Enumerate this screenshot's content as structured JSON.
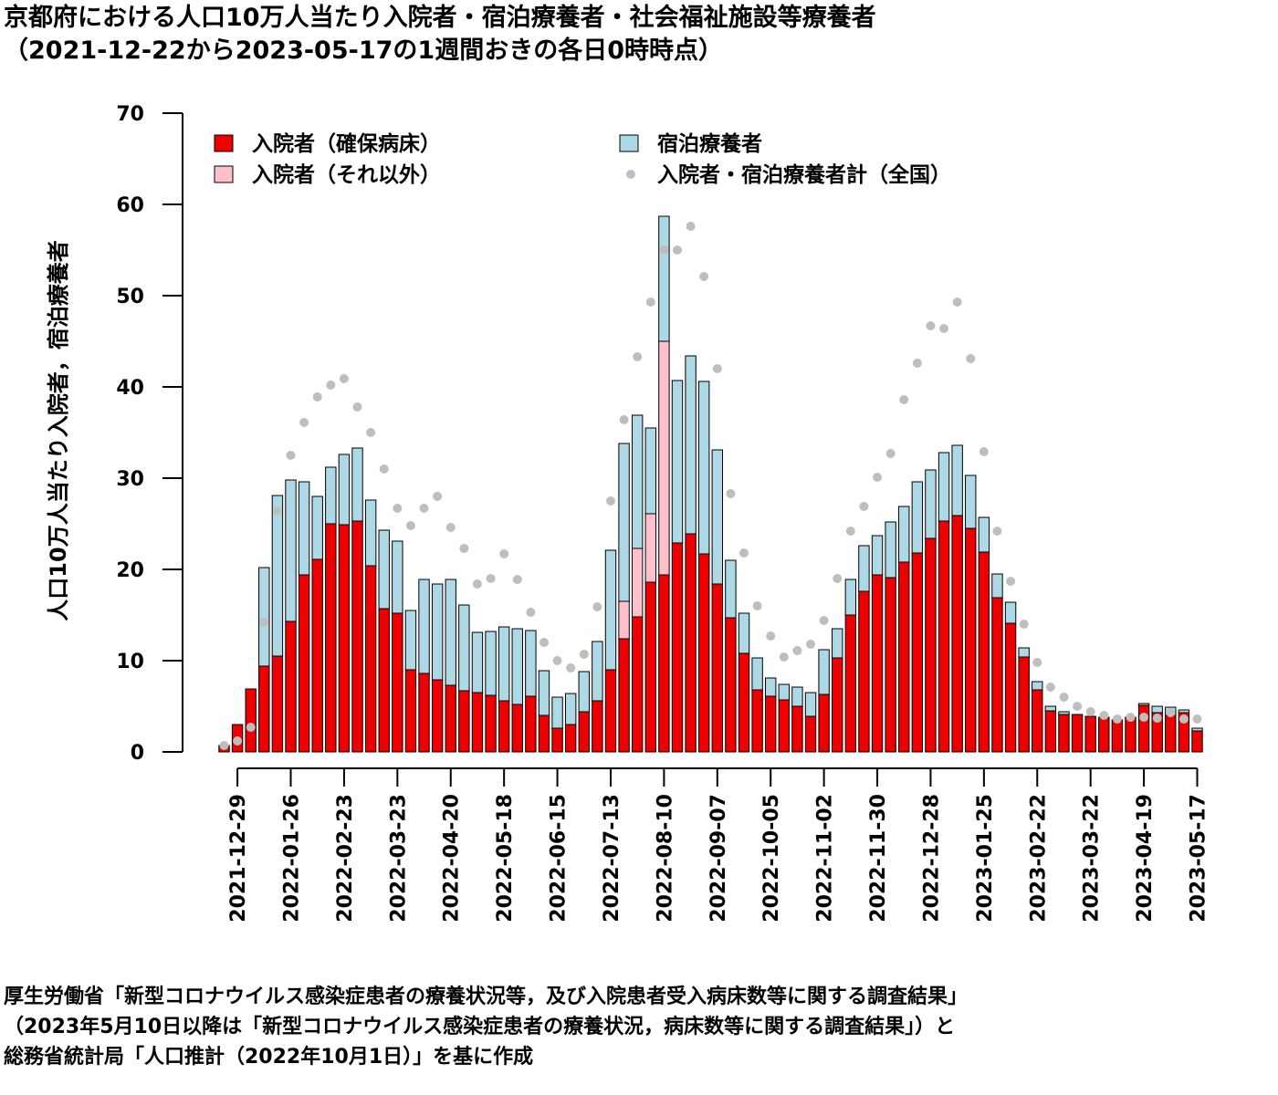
{
  "title_line1": "京都府における人口10万人当たり入院者・宿泊療養者・社会福祉施設等療養者",
  "title_line2": "（2021-12-22から2023-05-17の1週間おきの各日0時時点）",
  "source_line1": "厚生労働省「新型コロナウイルス感染症患者の療養状況等，及び入院患者受入病床数等に関する調査結果」",
  "source_line2": "（2023年5月10日以降は「新型コロナウイルス感染症患者の療養状況，病床数等に関する調査結果」）と",
  "source_line3": "総務省統計局「人口推計（2022年10月1日）」を基に作成",
  "chart_data": {
    "type": "bar",
    "ylabel": "人口10万人当たり入院者，宿泊療養者",
    "ylim": [
      0,
      70
    ],
    "yticks": [
      0,
      10,
      20,
      30,
      40,
      50,
      60,
      70
    ],
    "stacked": true,
    "x_tick_labels": [
      "2021-12-29",
      "2022-01-26",
      "2022-02-23",
      "2022-03-23",
      "2022-04-20",
      "2022-05-18",
      "2022-06-15",
      "2022-07-13",
      "2022-08-10",
      "2022-09-07",
      "2022-10-05",
      "2022-11-02",
      "2022-11-30",
      "2022-12-28",
      "2023-01-25",
      "2023-02-22",
      "2023-03-22",
      "2023-04-19",
      "2023-05-17"
    ],
    "x_tick_every": 4,
    "x_tick_start_index": 1,
    "categories": [
      "2021-12-22",
      "2021-12-29",
      "2022-01-05",
      "2022-01-12",
      "2022-01-19",
      "2022-01-26",
      "2022-02-02",
      "2022-02-09",
      "2022-02-16",
      "2022-02-23",
      "2022-03-02",
      "2022-03-09",
      "2022-03-16",
      "2022-03-23",
      "2022-03-30",
      "2022-04-06",
      "2022-04-13",
      "2022-04-20",
      "2022-04-27",
      "2022-05-04",
      "2022-05-11",
      "2022-05-18",
      "2022-05-25",
      "2022-06-01",
      "2022-06-08",
      "2022-06-15",
      "2022-06-22",
      "2022-06-29",
      "2022-07-06",
      "2022-07-13",
      "2022-07-20",
      "2022-07-27",
      "2022-08-03",
      "2022-08-10",
      "2022-08-17",
      "2022-08-24",
      "2022-08-31",
      "2022-09-07",
      "2022-09-14",
      "2022-09-21",
      "2022-09-28",
      "2022-10-05",
      "2022-10-12",
      "2022-10-19",
      "2022-10-26",
      "2022-11-02",
      "2022-11-09",
      "2022-11-16",
      "2022-11-23",
      "2022-11-30",
      "2022-12-07",
      "2022-12-14",
      "2022-12-21",
      "2022-12-28",
      "2023-01-04",
      "2023-01-11",
      "2023-01-18",
      "2023-01-25",
      "2023-02-01",
      "2023-02-08",
      "2023-02-15",
      "2023-02-22",
      "2023-03-01",
      "2023-03-08",
      "2023-03-15",
      "2023-03-22",
      "2023-03-29",
      "2023-04-05",
      "2023-04-12",
      "2023-04-19",
      "2023-04-26",
      "2023-05-03",
      "2023-05-10",
      "2023-05-17"
    ],
    "series": [
      {
        "name": "入院者（確保病床）",
        "color": "#ee0000",
        "values": [
          0.7,
          3.0,
          6.9,
          9.4,
          10.5,
          14.3,
          19.4,
          21.1,
          25.0,
          24.9,
          25.3,
          20.4,
          15.7,
          15.2,
          9.0,
          8.6,
          7.9,
          7.3,
          6.7,
          6.5,
          6.2,
          5.6,
          5.2,
          6.1,
          4.0,
          2.6,
          3.0,
          4.4,
          5.6,
          9.0,
          12.4,
          14.8,
          18.6,
          19.4,
          22.9,
          23.9,
          21.7,
          18.4,
          14.7,
          10.8,
          6.8,
          6.1,
          5.7,
          5.0,
          3.9,
          6.3,
          10.3,
          15.0,
          17.6,
          19.4,
          19.1,
          20.8,
          21.8,
          23.4,
          25.3,
          25.9,
          24.5,
          21.9,
          16.9,
          14.1,
          10.4,
          6.8,
          4.5,
          4.1,
          4.1,
          3.9,
          3.8,
          3.5,
          3.8,
          5.1,
          4.3,
          4.0,
          4.3,
          2.3
        ]
      },
      {
        "name": "入院者（それ以外）",
        "color": "#ffc0cb",
        "values": [
          0,
          0,
          0,
          0,
          0,
          0,
          0,
          0,
          0,
          0,
          0,
          0,
          0,
          0,
          0,
          0,
          0,
          0,
          0,
          0,
          0,
          0,
          0,
          0,
          0,
          0,
          0,
          0,
          0,
          0,
          4.1,
          7.5,
          7.5,
          25.6,
          0,
          0,
          0,
          0,
          0,
          0,
          0,
          0,
          0,
          0,
          0,
          0,
          0,
          0,
          0,
          0,
          0,
          0,
          0,
          0,
          0,
          0,
          0,
          0,
          0,
          0,
          0,
          0,
          0,
          0,
          0,
          0,
          0,
          0,
          0,
          0,
          0,
          0,
          0,
          0
        ]
      },
      {
        "name": "宿泊療養者",
        "color": "#add8e6",
        "values": [
          0,
          0,
          0,
          10.8,
          17.6,
          15.5,
          10.2,
          6.9,
          6.2,
          7.7,
          8.0,
          7.2,
          8.6,
          7.9,
          6.5,
          10.3,
          10.5,
          11.6,
          9.4,
          6.6,
          7.0,
          8.1,
          8.3,
          7.2,
          4.9,
          3.4,
          3.4,
          4.4,
          6.5,
          13.1,
          17.3,
          14.6,
          9.4,
          13.7,
          17.8,
          19.5,
          18.9,
          14.7,
          6.3,
          4.4,
          3.5,
          2.0,
          1.7,
          2.1,
          2.6,
          4.9,
          3.2,
          3.9,
          5.0,
          4.3,
          6.1,
          6.1,
          7.8,
          7.5,
          7.5,
          7.7,
          5.8,
          3.8,
          2.6,
          2.3,
          1.0,
          0.9,
          0.5,
          0.3,
          0,
          0,
          0,
          0,
          0,
          0.2,
          0.7,
          0.9,
          0.3,
          0.3
        ]
      },
      {
        "name": "入院者・宿泊療養者計（全国）",
        "color": "#bebebe",
        "type": "scatter",
        "values": [
          0.7,
          1.2,
          2.7,
          14.2,
          26.4,
          32.5,
          36.1,
          38.9,
          40.2,
          40.9,
          37.8,
          35.0,
          31.0,
          26.7,
          24.8,
          26.7,
          28.0,
          24.6,
          22.3,
          18.4,
          19.0,
          21.7,
          18.9,
          15.3,
          12.0,
          10.0,
          9.2,
          10.7,
          15.9,
          27.5,
          36.4,
          43.3,
          49.3,
          55.0,
          55.0,
          57.6,
          52.1,
          42.0,
          28.3,
          21.8,
          16.0,
          12.7,
          10.4,
          11.1,
          11.8,
          14.4,
          19.0,
          24.2,
          26.9,
          30.1,
          32.7,
          38.6,
          42.6,
          46.7,
          46.4,
          49.3,
          43.1,
          32.9,
          24.2,
          18.7,
          14.0,
          9.8,
          7.1,
          6.0,
          5.0,
          4.4,
          4.0,
          3.6,
          3.8,
          3.8,
          3.7,
          4.3,
          3.6,
          3.6
        ]
      }
    ],
    "legend": [
      "入院者（確保病床）",
      "入院者（それ以外）",
      "宿泊療養者",
      "入院者・宿泊療養者計（全国）"
    ]
  }
}
